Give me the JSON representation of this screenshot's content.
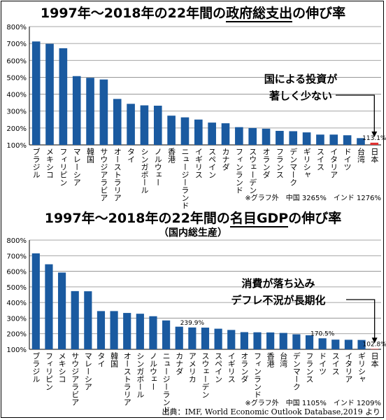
{
  "chart_data": [
    {
      "type": "bar",
      "title_prefix": "1997年～2018年の22年間の",
      "title_emph": "政府総支出",
      "title_suffix": "の伸び率",
      "subtitle": "",
      "ylim": [
        100,
        800
      ],
      "yticks": [
        "100%",
        "200%",
        "300%",
        "400%",
        "500%",
        "600%",
        "700%",
        "800%"
      ],
      "grid": true,
      "bar_color": "#1a5aa0",
      "highlight_color": "#e03030",
      "categories": [
        "ブラジル",
        "メキシコ",
        "フィリピン",
        "マレーシア",
        "韓国",
        "サウジアラビア",
        "オーストラリア",
        "タイ",
        "シンガポール",
        "ノルウェー",
        "香港",
        "ニュージーランド",
        "イギリス",
        "スペイン",
        "カナダ",
        "フィンランド",
        "スウェーデン",
        "オランダ",
        "フランス",
        "デンマーク",
        "ギリシャ",
        "スイス",
        "イタリア",
        "ドイツ",
        "台湾",
        "日本"
      ],
      "values": [
        712,
        698,
        672,
        507,
        497,
        487,
        372,
        343,
        334,
        332,
        273,
        263,
        250,
        232,
        228,
        205,
        200,
        196,
        183,
        181,
        174,
        161,
        161,
        157,
        140,
        113.1
      ],
      "value_labels": [
        {
          "index": 25,
          "text": "113.1%"
        }
      ],
      "annotation": [
        "国による投資が",
        "著しく少ない"
      ],
      "footnote": "※グラフ外　中国 3265%　インド 1276%"
    },
    {
      "type": "bar",
      "title_prefix": "1997年～2018年の22年間の",
      "title_emph": "名目GDP",
      "title_suffix": "の伸び率",
      "subtitle": "（国内総生産）",
      "ylim": [
        100,
        800
      ],
      "yticks": [
        "100%",
        "200%",
        "300%",
        "400%",
        "500%",
        "600%",
        "700%",
        "800%"
      ],
      "grid": true,
      "bar_color": "#1a5aa0",
      "highlight_color": "#e03030",
      "categories": [
        "ブラジル",
        "フィリピン",
        "メキシコ",
        "サウジアラビア",
        "マレーシア",
        "タイ",
        "韓国",
        "オーストラリア",
        "シンガポール",
        "ノルウェー",
        "ニュージーランド",
        "カナダ",
        "アメリカ",
        "スウェーデン",
        "スペイン",
        "イギリス",
        "オランダ",
        "フィンランド",
        "香港",
        "台湾",
        "デンマーク",
        "フランス",
        "ドイツ",
        "スイス",
        "イタリア",
        "ギリシャ",
        "日本"
      ],
      "values": [
        715,
        645,
        592,
        473,
        472,
        345,
        345,
        333,
        328,
        312,
        285,
        245,
        239.9,
        239,
        232,
        224,
        210,
        209,
        208,
        205,
        196,
        190,
        170.5,
        162,
        161,
        160,
        102.8
      ],
      "value_labels": [
        {
          "index": 12,
          "text": "239.9%"
        },
        {
          "index": 22,
          "text": "170.5%"
        },
        {
          "index": 26,
          "text": "102.8%"
        }
      ],
      "annotation": [
        "消費が落ち込み",
        "デフレ不況が長期化"
      ],
      "footnote": "※グラフ外　中国 1105%　インド 1209%"
    }
  ],
  "source": "出典：IMF, World Economic Outlook Database,2019 より"
}
